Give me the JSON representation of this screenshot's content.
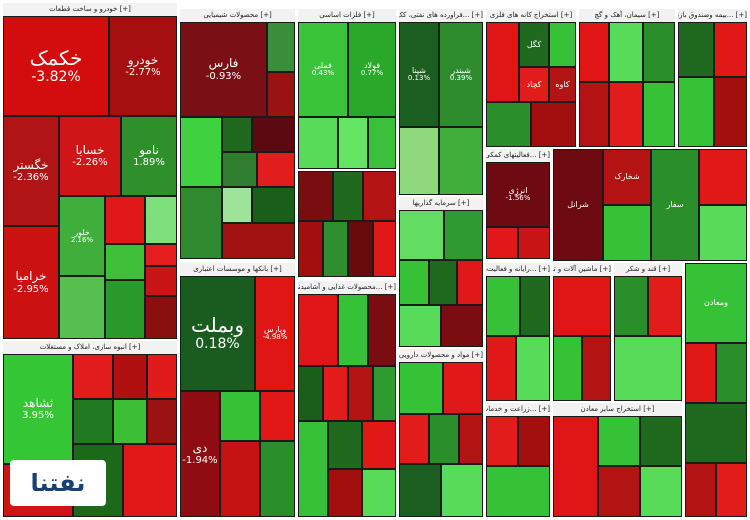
{
  "colors": {
    "strong_up": "#1fc21f",
    "up": "#3aa83a",
    "light_up": "#55e155",
    "dark_up": "#0f6a1f",
    "strong_down": "#e60000",
    "down": "#b31313",
    "dark_down": "#6e0b0b",
    "neutral": "#8a1010"
  },
  "sectors": [
    {
      "title": "[+] خودرو و ساخت قطعات"
    },
    {
      "title": "[+] محصولات شیمیایی"
    },
    {
      "title": "[+] فلزات اساسی"
    },
    {
      "title": "[+] ...فراورده های نفتی، کک و سوخت ه"
    },
    {
      "title": "[+] استخراج کانه های فلزی"
    },
    {
      "title": "[+] سیمان، آهک و گچ"
    },
    {
      "title": "[+] ...بیمه وصندوق بازنشستگی"
    },
    {
      "title": "[+] ...فعالیتهای کمکی به نهادهه"
    },
    {
      "title": "[+] ...رایانه و فعالیت‌های وابس"
    },
    {
      "title": "[+] بانکها و موسسات اعتباری"
    },
    {
      "title": "[+] ...محصولات غذایی و آشامیدنی به جز قند و"
    },
    {
      "title": "[+] انبوه سازی، املاک و مستغلات"
    },
    {
      "title": "[+] مواد و محصولات دارویی"
    },
    {
      "title": "[+] سرمایه گذاریها"
    },
    {
      "title": "[+] ماشین آلات و تجهیزات"
    },
    {
      "title": "[+] قند و شکر"
    },
    {
      "title": "[+] استخراج سایر معادن"
    },
    {
      "title": "[+] ...زراعت و خدمات وابسته"
    }
  ],
  "tiles": {
    "khekmak": {
      "label": "خکمک",
      "change": "-3.82%"
    },
    "khodro": {
      "label": "خودرو",
      "change": "-2.77%"
    },
    "khgostar": {
      "label": "خگستر",
      "change": "-2.36%"
    },
    "khsapa": {
      "label": "خسایا",
      "change": "-2.26%"
    },
    "namva": {
      "label": "نامو",
      "change": "1.89%"
    },
    "kharamia": {
      "label": "خرامیا",
      "change": "-2.95%"
    },
    "khlor": {
      "label": "خلور",
      "change": "2.16%"
    },
    "fars": {
      "label": "فارس",
      "change": "-0.93%"
    },
    "fameli": {
      "label": "فملی",
      "change": "0.43%"
    },
    "foolad": {
      "label": "فولاد",
      "change": "0.77%"
    },
    "shepna": {
      "label": "شپنا",
      "change": "0.13%"
    },
    "shabandar": {
      "label": "شبندر",
      "change": "0.39%"
    },
    "vebmellat": {
      "label": "وبملت",
      "change": "0.18%"
    },
    "vepars": {
      "label": "وپارس",
      "change": "-4.98%"
    },
    "dey": {
      "label": "دی",
      "change": "-1.94%"
    },
    "thshahed": {
      "label": "ثشاهد",
      "change": "3.95%"
    },
    "anarjy": {
      "label": "انرژی",
      "change": "-1.56%"
    },
    "gol": {
      "label": "کگل"
    },
    "chadormalu": {
      "label": "کچاد"
    },
    "kabesh": {
      "label": "کاوه"
    },
    "dana": {
      "label": "شرانل"
    },
    "shekhaz": {
      "label": "شخارک"
    },
    "saragh": {
      "label": "سفار"
    },
    "zagros": {
      "label": "ومعادن"
    }
  },
  "logo_text": "نفتنا"
}
